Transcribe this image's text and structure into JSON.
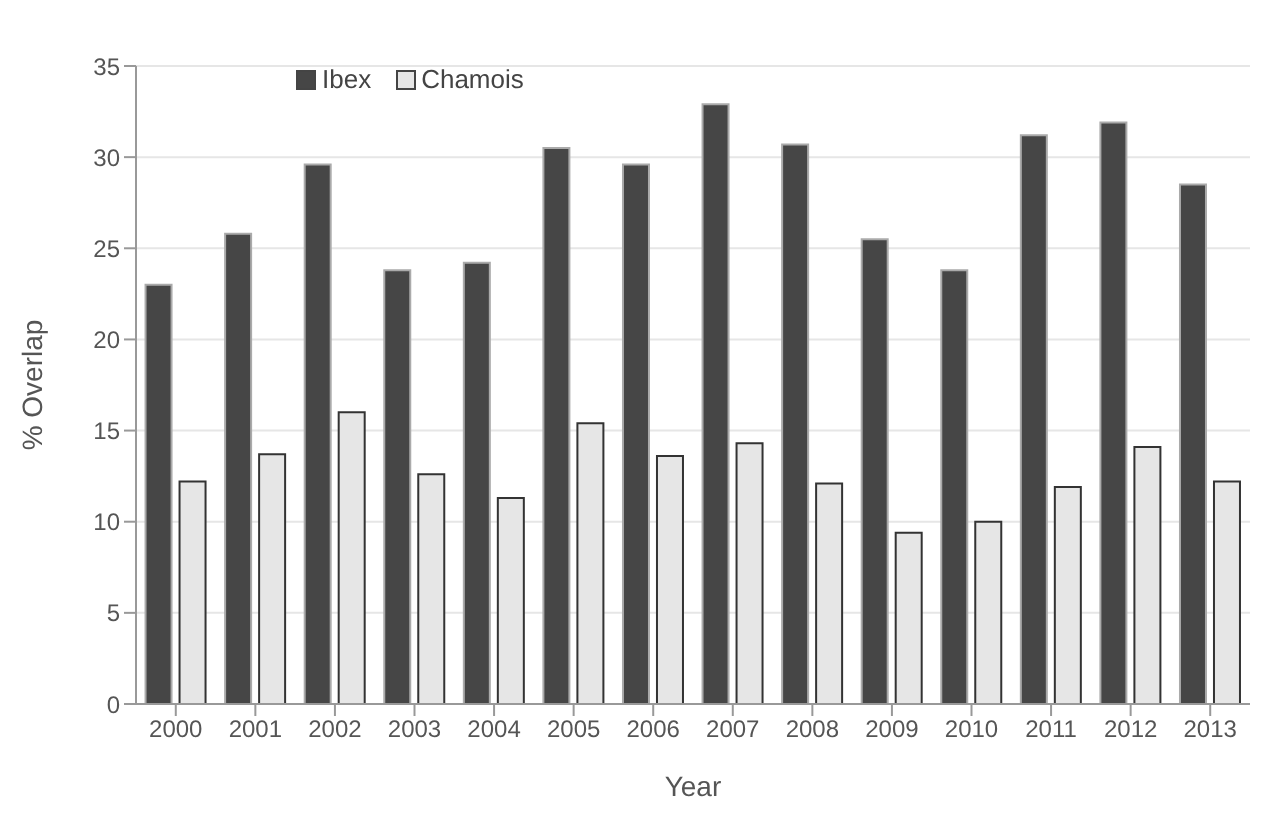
{
  "chart_data": {
    "type": "bar",
    "xlabel": "Year",
    "ylabel": "% Overlap",
    "categories": [
      "2000",
      "2001",
      "2002",
      "2003",
      "2004",
      "2005",
      "2006",
      "2007",
      "2008",
      "2009",
      "2010",
      "2011",
      "2012",
      "2013"
    ],
    "series": [
      {
        "name": "Ibex",
        "color": "#464646",
        "values": [
          23.0,
          25.8,
          29.6,
          23.8,
          24.2,
          30.5,
          29.6,
          32.9,
          30.7,
          25.5,
          23.8,
          31.2,
          31.9,
          28.5
        ]
      },
      {
        "name": "Chamois",
        "color": "#e6e6e6",
        "values": [
          12.2,
          13.7,
          16.0,
          12.6,
          11.3,
          15.4,
          13.6,
          14.3,
          12.1,
          9.4,
          10.0,
          11.9,
          14.1,
          12.2
        ]
      }
    ],
    "ylim": [
      0,
      35
    ],
    "yticks": [
      0,
      5,
      10,
      15,
      20,
      25,
      30,
      35
    ],
    "grid": "y",
    "legend": "top left"
  }
}
